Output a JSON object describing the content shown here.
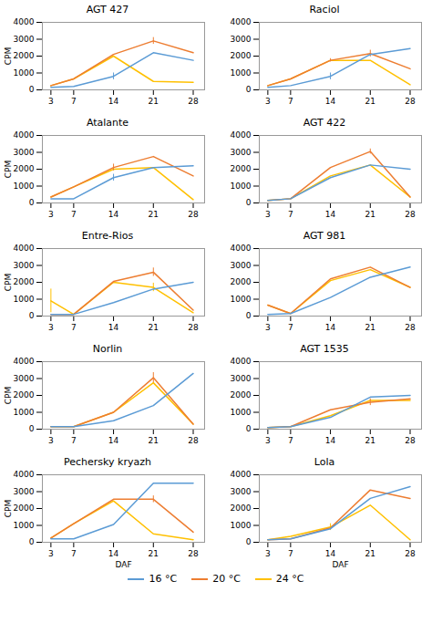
{
  "chart_data": [
    {
      "type": "line",
      "title": "AGT 427",
      "x": [
        3,
        7,
        14,
        21,
        28
      ],
      "xlim": [
        1.5,
        30
      ],
      "ylim": [
        0,
        4000
      ],
      "xticks": [
        3,
        7,
        14,
        21,
        28
      ],
      "yticks": [
        0,
        1000,
        2000,
        3000,
        4000
      ],
      "ylabel": "CPM",
      "legend": "bottom",
      "series": [
        {
          "name": "16 °C",
          "color": "#5B9BD5",
          "values": [
            150,
            200,
            800,
            2200,
            1750
          ],
          "errors": [
            0,
            0,
            200,
            0,
            0
          ]
        },
        {
          "name": "20 °C",
          "color": "#ED7D31",
          "values": [
            250,
            650,
            2100,
            2900,
            2200
          ],
          "errors": [
            0,
            0,
            0,
            200,
            0
          ]
        },
        {
          "name": "24 °C",
          "color": "#FFC000",
          "values": [
            250,
            650,
            2000,
            500,
            450
          ],
          "errors": [
            0,
            0,
            0,
            0,
            0
          ]
        }
      ]
    },
    {
      "type": "line",
      "title": "Raciol",
      "x": [
        3,
        7,
        14,
        21,
        28
      ],
      "xlim": [
        1.5,
        30
      ],
      "ylim": [
        0,
        4000
      ],
      "xticks": [
        3,
        7,
        14,
        21,
        28
      ],
      "yticks": [
        0,
        1000,
        2000,
        3000,
        4000
      ],
      "legend": "bottom",
      "series": [
        {
          "name": "16 °C",
          "color": "#5B9BD5",
          "values": [
            150,
            250,
            800,
            2100,
            2450
          ],
          "errors": [
            0,
            0,
            200,
            0,
            0
          ]
        },
        {
          "name": "20 °C",
          "color": "#ED7D31",
          "values": [
            250,
            650,
            1750,
            2150,
            1250
          ],
          "errors": [
            0,
            0,
            100,
            200,
            0
          ]
        },
        {
          "name": "24 °C",
          "color": "#FFC000",
          "values": [
            250,
            650,
            1750,
            1750,
            300
          ],
          "errors": [
            0,
            0,
            0,
            0,
            0
          ]
        }
      ]
    },
    {
      "type": "line",
      "title": "Atalante",
      "x": [
        3,
        7,
        14,
        21,
        28
      ],
      "xlim": [
        1.5,
        30
      ],
      "ylim": [
        0,
        4000
      ],
      "xticks": [
        3,
        7,
        14,
        21,
        28
      ],
      "yticks": [
        0,
        1000,
        2000,
        3000,
        4000
      ],
      "ylabel": "CPM",
      "legend": "bottom",
      "series": [
        {
          "name": "16 °C",
          "color": "#5B9BD5",
          "values": [
            250,
            250,
            1500,
            2100,
            2200
          ],
          "errors": [
            0,
            0,
            200,
            0,
            0
          ]
        },
        {
          "name": "20 °C",
          "color": "#ED7D31",
          "values": [
            350,
            950,
            2100,
            2750,
            1600
          ],
          "errors": [
            0,
            0,
            200,
            0,
            0
          ]
        },
        {
          "name": "24 °C",
          "color": "#FFC000",
          "values": [
            350,
            950,
            2000,
            2100,
            200
          ],
          "errors": [
            0,
            0,
            0,
            0,
            0
          ]
        }
      ]
    },
    {
      "type": "line",
      "title": "AGT 422",
      "x": [
        3,
        7,
        14,
        21,
        28
      ],
      "xlim": [
        1.5,
        30
      ],
      "ylim": [
        0,
        4000
      ],
      "xticks": [
        3,
        7,
        14,
        21,
        28
      ],
      "yticks": [
        0,
        1000,
        2000,
        3000,
        4000
      ],
      "legend": "bottom",
      "series": [
        {
          "name": "16 °C",
          "color": "#5B9BD5",
          "values": [
            150,
            250,
            1500,
            2250,
            2000
          ],
          "errors": [
            0,
            0,
            0,
            0,
            0
          ]
        },
        {
          "name": "20 °C",
          "color": "#ED7D31",
          "values": [
            150,
            250,
            2100,
            3050,
            350
          ],
          "errors": [
            0,
            0,
            0,
            150,
            0
          ]
        },
        {
          "name": "24 °C",
          "color": "#FFC000",
          "values": [
            150,
            250,
            1600,
            2250,
            350
          ],
          "errors": [
            0,
            0,
            0,
            0,
            0
          ]
        }
      ]
    },
    {
      "type": "line",
      "title": "Entre-Rios",
      "x": [
        3,
        7,
        14,
        21,
        28
      ],
      "xlim": [
        1.5,
        30
      ],
      "ylim": [
        0,
        4000
      ],
      "xticks": [
        3,
        7,
        14,
        21,
        28
      ],
      "yticks": [
        0,
        1000,
        2000,
        3000,
        4000
      ],
      "ylabel": "CPM",
      "legend": "bottom",
      "series": [
        {
          "name": "16 °C",
          "color": "#5B9BD5",
          "values": [
            100,
            100,
            800,
            1600,
            2000
          ],
          "errors": [
            0,
            0,
            0,
            0,
            0
          ]
        },
        {
          "name": "20 °C",
          "color": "#ED7D31",
          "values": [
            100,
            100,
            2050,
            2600,
            350
          ],
          "errors": [
            0,
            0,
            0,
            250,
            0
          ]
        },
        {
          "name": "24 °C",
          "color": "#FFC000",
          "values": [
            900,
            100,
            2000,
            1700,
            200
          ],
          "errors": [
            700,
            0,
            0,
            250,
            0
          ]
        }
      ]
    },
    {
      "type": "line",
      "title": "AGT 981",
      "x": [
        3,
        7,
        14,
        21,
        28
      ],
      "xlim": [
        1.5,
        30
      ],
      "ylim": [
        0,
        4000
      ],
      "xticks": [
        3,
        7,
        14,
        21,
        28
      ],
      "yticks": [
        0,
        1000,
        2000,
        3000,
        4000
      ],
      "legend": "bottom",
      "series": [
        {
          "name": "16 °C",
          "color": "#5B9BD5",
          "values": [
            100,
            150,
            1100,
            2300,
            2900
          ],
          "errors": [
            0,
            0,
            0,
            0,
            0
          ]
        },
        {
          "name": "20 °C",
          "color": "#ED7D31",
          "values": [
            650,
            150,
            2200,
            2900,
            1700
          ],
          "errors": [
            0,
            0,
            0,
            0,
            0
          ]
        },
        {
          "name": "24 °C",
          "color": "#FFC000",
          "values": [
            650,
            150,
            2100,
            2750,
            1700
          ],
          "errors": [
            0,
            0,
            0,
            0,
            0
          ]
        }
      ]
    },
    {
      "type": "line",
      "title": "Norlin",
      "x": [
        3,
        7,
        14,
        21,
        28
      ],
      "xlim": [
        1.5,
        30
      ],
      "ylim": [
        0,
        4000
      ],
      "xticks": [
        3,
        7,
        14,
        21,
        28
      ],
      "yticks": [
        0,
        1000,
        2000,
        3000,
        4000
      ],
      "ylabel": "CPM",
      "legend": "bottom",
      "series": [
        {
          "name": "16 °C",
          "color": "#5B9BD5",
          "values": [
            150,
            150,
            500,
            1400,
            3300
          ],
          "errors": [
            0,
            0,
            0,
            0,
            0
          ]
        },
        {
          "name": "20 °C",
          "color": "#ED7D31",
          "values": [
            150,
            150,
            1000,
            3050,
            300
          ],
          "errors": [
            0,
            0,
            0,
            300,
            0
          ]
        },
        {
          "name": "24 °C",
          "color": "#FFC000",
          "values": [
            150,
            150,
            1000,
            2750,
            300
          ],
          "errors": [
            0,
            0,
            0,
            0,
            0
          ]
        }
      ]
    },
    {
      "type": "line",
      "title": "AGT 1535",
      "x": [
        3,
        7,
        14,
        21,
        28
      ],
      "xlim": [
        1.5,
        30
      ],
      "ylim": [
        0,
        4000
      ],
      "xticks": [
        3,
        7,
        14,
        21,
        28
      ],
      "yticks": [
        0,
        1000,
        2000,
        3000,
        4000
      ],
      "legend": "bottom",
      "series": [
        {
          "name": "16 °C",
          "color": "#5B9BD5",
          "values": [
            100,
            150,
            700,
            1900,
            2000
          ],
          "errors": [
            0,
            0,
            0,
            0,
            0
          ]
        },
        {
          "name": "20 °C",
          "color": "#ED7D31",
          "values": [
            100,
            150,
            1150,
            1600,
            1800
          ],
          "errors": [
            0,
            0,
            0,
            200,
            0
          ]
        },
        {
          "name": "24 °C",
          "color": "#FFC000",
          "values": [
            100,
            150,
            800,
            1700,
            1700
          ],
          "errors": [
            0,
            0,
            0,
            0,
            0
          ]
        }
      ]
    },
    {
      "type": "line",
      "title": "Pechersky kryazh",
      "x": [
        3,
        7,
        14,
        21,
        28
      ],
      "xlim": [
        1.5,
        30
      ],
      "ylim": [
        0,
        4000
      ],
      "xticks": [
        3,
        7,
        14,
        21,
        28
      ],
      "yticks": [
        0,
        1000,
        2000,
        3000,
        4000
      ],
      "ylabel": "CPM",
      "xlabel": "DAF",
      "legend": "bottom",
      "series": [
        {
          "name": "16 °C",
          "color": "#5B9BD5",
          "values": [
            200,
            200,
            1050,
            3500,
            3500
          ],
          "errors": [
            0,
            0,
            0,
            0,
            0
          ]
        },
        {
          "name": "20 °C",
          "color": "#ED7D31",
          "values": [
            250,
            1100,
            2550,
            2550,
            600
          ],
          "errors": [
            0,
            0,
            0,
            200,
            0
          ]
        },
        {
          "name": "24 °C",
          "color": "#FFC000",
          "values": [
            250,
            1100,
            2450,
            500,
            150
          ],
          "errors": [
            0,
            0,
            0,
            0,
            0
          ]
        }
      ]
    },
    {
      "type": "line",
      "title": "Lola",
      "x": [
        3,
        7,
        14,
        21,
        28
      ],
      "xlim": [
        1.5,
        30
      ],
      "ylim": [
        0,
        4000
      ],
      "xticks": [
        3,
        7,
        14,
        21,
        28
      ],
      "yticks": [
        0,
        1000,
        2000,
        3000,
        4000
      ],
      "xlabel": "DAF",
      "legend": "bottom",
      "series": [
        {
          "name": "16 °C",
          "color": "#5B9BD5",
          "values": [
            150,
            200,
            800,
            2600,
            3300
          ],
          "errors": [
            0,
            0,
            0,
            0,
            0
          ]
        },
        {
          "name": "20 °C",
          "color": "#ED7D31",
          "values": [
            150,
            200,
            850,
            3100,
            2600
          ],
          "errors": [
            0,
            0,
            0,
            0,
            0
          ]
        },
        {
          "name": "24 °C",
          "color": "#FFC000",
          "values": [
            150,
            350,
            900,
            2200,
            150
          ],
          "errors": [
            0,
            0,
            200,
            0,
            0
          ]
        }
      ]
    }
  ]
}
